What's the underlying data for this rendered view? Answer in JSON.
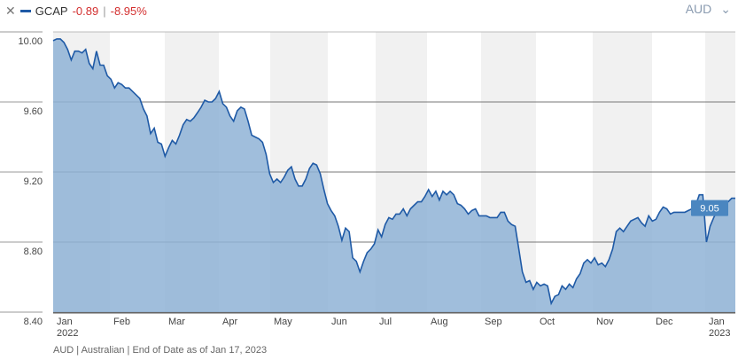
{
  "header": {
    "close_icon": "close-icon",
    "ticker": "GCAP",
    "change": "-0.89",
    "separator": "|",
    "change_pct": "-8.95%",
    "currency": "AUD",
    "dropdown_icon": "chevron-down-icon"
  },
  "footer": "AUD | Australian | End of Date as of Jan 17, 2023",
  "colors": {
    "line": "#1f5aa6",
    "fill": "#8fb3d6",
    "negative": "#d32f2f",
    "label_bg": "#4a86c0"
  },
  "chart_data": {
    "type": "area",
    "x_range": [
      "2022-01-01",
      "2023-01-17"
    ],
    "ylim": [
      8.4,
      10.0
    ],
    "yticks": [
      "10.00",
      "9.60",
      "9.20",
      "8.80",
      "8.40"
    ],
    "xticks": [
      [
        "Jan",
        "2022"
      ],
      [
        "Feb",
        ""
      ],
      [
        "Mar",
        ""
      ],
      [
        "Apr",
        ""
      ],
      [
        "May",
        ""
      ],
      [
        "Jun",
        ""
      ],
      [
        "Jul",
        ""
      ],
      [
        "Aug",
        ""
      ],
      [
        "Sep",
        ""
      ],
      [
        "Oct",
        ""
      ],
      [
        "Nov",
        ""
      ],
      [
        "Dec",
        ""
      ],
      [
        "Jan",
        "2023"
      ]
    ],
    "last_value_label": "9.05",
    "grid": true,
    "values": [
      9.95,
      9.96,
      9.96,
      9.94,
      9.9,
      9.84,
      9.89,
      9.89,
      9.88,
      9.9,
      9.82,
      9.79,
      9.89,
      9.81,
      9.81,
      9.75,
      9.73,
      9.68,
      9.71,
      9.7,
      9.68,
      9.68,
      9.66,
      9.64,
      9.62,
      9.56,
      9.52,
      9.42,
      9.45,
      9.37,
      9.36,
      9.29,
      9.34,
      9.38,
      9.36,
      9.41,
      9.47,
      9.5,
      9.49,
      9.51,
      9.54,
      9.57,
      9.61,
      9.6,
      9.6,
      9.62,
      9.66,
      9.59,
      9.57,
      9.52,
      9.49,
      9.55,
      9.57,
      9.56,
      9.49,
      9.41,
      9.4,
      9.39,
      9.37,
      9.3,
      9.19,
      9.14,
      9.16,
      9.14,
      9.17,
      9.21,
      9.23,
      9.16,
      9.12,
      9.12,
      9.16,
      9.22,
      9.25,
      9.24,
      9.19,
      9.1,
      9.02,
      8.98,
      8.95,
      8.89,
      8.81,
      8.88,
      8.86,
      8.71,
      8.69,
      8.63,
      8.69,
      8.74,
      8.76,
      8.79,
      8.87,
      8.83,
      8.9,
      8.94,
      8.93,
      8.96,
      8.96,
      8.99,
      8.95,
      8.99,
      9.01,
      9.03,
      9.03,
      9.06,
      9.1,
      9.06,
      9.09,
      9.04,
      9.09,
      9.07,
      9.09,
      9.07,
      9.02,
      9.01,
      8.99,
      8.96,
      8.98,
      8.99,
      8.95,
      8.95,
      8.95,
      8.94,
      8.94,
      8.94,
      8.97,
      8.97,
      8.92,
      8.9,
      8.89,
      8.76,
      8.63,
      8.57,
      8.58,
      8.53,
      8.57,
      8.55,
      8.56,
      8.55,
      8.45,
      8.49,
      8.5,
      8.55,
      8.53,
      8.56,
      8.54,
      8.59,
      8.62,
      8.68,
      8.7,
      8.68,
      8.71,
      8.67,
      8.68,
      8.66,
      8.7,
      8.76,
      8.86,
      8.88,
      8.86,
      8.89,
      8.92,
      8.93,
      8.94,
      8.91,
      8.89,
      8.95,
      8.92,
      8.93,
      8.97,
      9.0,
      8.99,
      8.96,
      8.97,
      8.97,
      8.97,
      8.97,
      8.98,
      8.99,
      9.01,
      9.07,
      9.07,
      8.8,
      8.89,
      8.94,
      8.98,
      9.0,
      9.02,
      9.03,
      9.05,
      9.05
    ]
  }
}
